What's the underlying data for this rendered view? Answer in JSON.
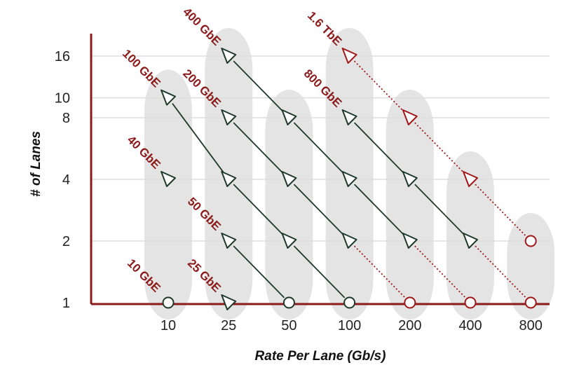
{
  "chart_data": {
    "type": "scatter",
    "title": "",
    "xlabel": "Rate Per Lane (Gb/s)",
    "ylabel": "# of Lanes",
    "x_categories": [
      "10",
      "25",
      "50",
      "100",
      "200",
      "400",
      "800"
    ],
    "y_ticks": [
      1,
      2,
      4,
      8,
      10,
      16
    ],
    "y_scale": "log",
    "grid": true,
    "colors": {
      "axis": "#8b1a1a",
      "existing": "#1f3a2a",
      "future": "#a01818",
      "band": "#e4e4e4",
      "grid": "#dddddd"
    },
    "series": [
      {
        "name": "10 GbE",
        "status": "existing",
        "points": [
          {
            "x": "10",
            "y": 1,
            "marker": "circle"
          }
        ]
      },
      {
        "name": "40 GbE",
        "status": "existing",
        "points": [
          {
            "x": "10",
            "y": 4,
            "marker": "triangle"
          }
        ]
      },
      {
        "name": "25 GbE",
        "status": "existing",
        "points": [
          {
            "x": "25",
            "y": 1,
            "marker": "triangle"
          }
        ]
      },
      {
        "name": "100 GbE",
        "status": "existing",
        "points": [
          {
            "x": "10",
            "y": 10,
            "marker": "triangle"
          },
          {
            "x": "25",
            "y": 4,
            "marker": "triangle"
          },
          {
            "x": "50",
            "y": 2,
            "marker": "triangle"
          },
          {
            "x": "100",
            "y": 1,
            "marker": "circle"
          }
        ]
      },
      {
        "name": "50 GbE",
        "status": "existing",
        "points": [
          {
            "x": "25",
            "y": 2,
            "marker": "triangle"
          },
          {
            "x": "50",
            "y": 1,
            "marker": "circle"
          }
        ]
      },
      {
        "name": "200 GbE",
        "status": "existing",
        "points": [
          {
            "x": "25",
            "y": 8,
            "marker": "triangle"
          },
          {
            "x": "50",
            "y": 4,
            "marker": "triangle"
          },
          {
            "x": "100",
            "y": 2,
            "marker": "triangle"
          },
          {
            "x": "200",
            "y": 1,
            "marker": "circle"
          }
        ]
      },
      {
        "name": "400 GbE",
        "status": "existing",
        "points": [
          {
            "x": "25",
            "y": 16,
            "marker": "triangle"
          },
          {
            "x": "50",
            "y": 8,
            "marker": "triangle"
          },
          {
            "x": "100",
            "y": 4,
            "marker": "triangle"
          },
          {
            "x": "200",
            "y": 2,
            "marker": "triangle"
          },
          {
            "x": "400",
            "y": 1,
            "marker": "circle"
          }
        ]
      },
      {
        "name": "800 GbE",
        "status": "existing",
        "points": [
          {
            "x": "100",
            "y": 8,
            "marker": "triangle"
          },
          {
            "x": "200",
            "y": 4,
            "marker": "triangle"
          },
          {
            "x": "400",
            "y": 2,
            "marker": "triangle"
          },
          {
            "x": "800",
            "y": 1,
            "marker": "circle"
          }
        ]
      },
      {
        "name": "1.6 TbE",
        "status": "future",
        "points": [
          {
            "x": "100",
            "y": 16,
            "marker": "triangle"
          },
          {
            "x": "200",
            "y": 8,
            "marker": "triangle"
          },
          {
            "x": "400",
            "y": 4,
            "marker": "triangle"
          },
          {
            "x": "800",
            "y": 2,
            "marker": "circle"
          }
        ]
      }
    ]
  }
}
